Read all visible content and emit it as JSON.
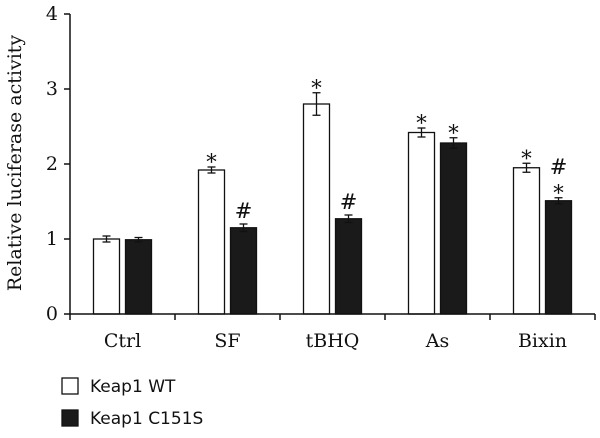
{
  "chart_data": {
    "type": "bar",
    "ylabel": "Relative luciferase activity",
    "xlabel": "",
    "title": "",
    "ylim": [
      0,
      4
    ],
    "yticks": [
      "0",
      "1",
      "2",
      "3",
      "4"
    ],
    "categories": [
      "Ctrl",
      "SF",
      "tBHQ",
      "As",
      "Bixin"
    ],
    "series": [
      {
        "name": "Keap1 WT",
        "color": "#ffffff",
        "values": [
          1.0,
          1.92,
          2.8,
          2.42,
          1.95
        ],
        "errors": [
          0.04,
          0.04,
          0.15,
          0.06,
          0.06
        ],
        "annotations": [
          [],
          [
            "*"
          ],
          [
            "*"
          ],
          [
            "*"
          ],
          [
            "*"
          ]
        ]
      },
      {
        "name": "Keap1 C151S",
        "color": "#1a1a1a",
        "values": [
          0.99,
          1.15,
          1.27,
          2.28,
          1.51
        ],
        "errors": [
          0.03,
          0.05,
          0.05,
          0.07,
          0.04
        ],
        "annotations": [
          [],
          [
            "#"
          ],
          [
            "#"
          ],
          [
            "*"
          ],
          [
            "*",
            "#"
          ]
        ]
      }
    ],
    "legend_position": "bottom-left",
    "grid": false
  }
}
